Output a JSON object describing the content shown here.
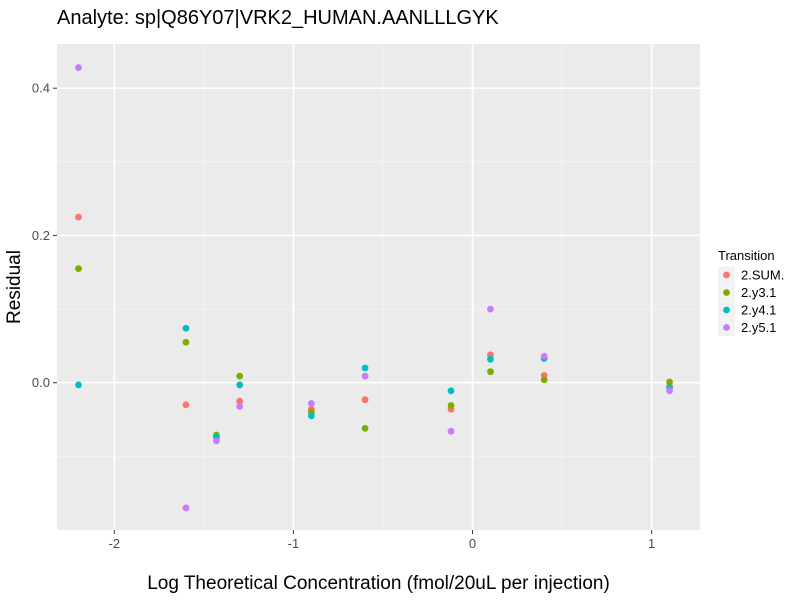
{
  "chart_data": {
    "type": "scatter",
    "title": "Analyte: sp|Q86Y07|VRK2_HUMAN.AANLLLGYK",
    "xlabel": "Log Theoretical Concentration (fmol/20uL per injection)",
    "ylabel": "Residual",
    "xlim": [
      -2.32,
      1.27
    ],
    "ylim": [
      -0.2,
      0.46
    ],
    "x_ticks": [
      -2,
      -1,
      0,
      1
    ],
    "x_tick_labels": [
      "-2",
      "-1",
      "0",
      "1"
    ],
    "y_ticks": [
      0.0,
      0.2,
      0.4
    ],
    "y_tick_labels": [
      "0.0",
      "0.2",
      "0.4"
    ],
    "grid": true,
    "legend": {
      "title": "Transition",
      "position": "right"
    },
    "series": [
      {
        "name": "2.SUM.",
        "color": "#F8766D",
        "x": [
          -2.2,
          -1.6,
          -1.3,
          -0.9,
          -0.6,
          -0.12,
          0.1,
          0.4,
          1.1
        ],
        "y": [
          0.225,
          -0.03,
          -0.025,
          -0.036,
          -0.023,
          -0.036,
          0.038,
          0.01,
          -0.005
        ]
      },
      {
        "name": "2.y3.1",
        "color": "#7CAE00",
        "x": [
          -2.2,
          -1.6,
          -1.43,
          -1.3,
          -0.9,
          -0.6,
          -0.12,
          0.1,
          0.4,
          1.1
        ],
        "y": [
          0.155,
          0.055,
          -0.071,
          0.009,
          -0.04,
          -0.062,
          -0.031,
          0.015,
          0.004,
          0.001
        ]
      },
      {
        "name": "2.y4.1",
        "color": "#00BFC4",
        "x": [
          -2.2,
          -1.6,
          -1.43,
          -1.3,
          -0.9,
          -0.6,
          -0.12,
          0.1,
          0.4,
          1.1
        ],
        "y": [
          -0.003,
          0.074,
          -0.074,
          -0.003,
          -0.045,
          0.02,
          -0.011,
          0.032,
          0.033,
          -0.007
        ]
      },
      {
        "name": "2.y5.1",
        "color": "#C77CFF",
        "x": [
          -2.2,
          -1.6,
          -1.43,
          -1.3,
          -0.9,
          -0.6,
          -0.12,
          0.1,
          0.4,
          1.1
        ],
        "y": [
          0.428,
          -0.17,
          -0.079,
          -0.032,
          -0.028,
          0.009,
          -0.066,
          0.1,
          0.036,
          -0.011
        ]
      }
    ]
  }
}
